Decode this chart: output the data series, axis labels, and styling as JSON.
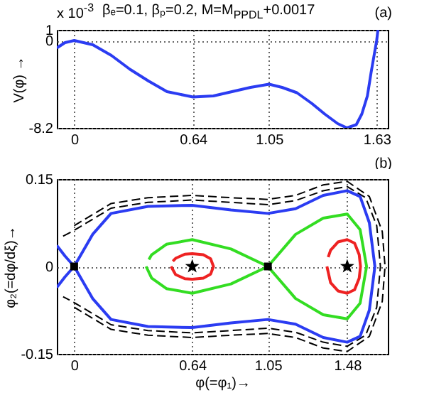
{
  "chart_data": [
    {
      "type": "line",
      "title": "βₑ=0.1, βₚ=0.2, M=M$_{PPDL}$+0.0017",
      "ylabel": "V(φ) →",
      "annotations": [
        "x 10$^{-3}$",
        "(a)"
      ],
      "xlim": [
        -0.094,
        1.69
      ],
      "xticks": [
        0,
        0.64,
        1.05,
        1.63
      ],
      "ylim": [
        -8.2,
        1
      ],
      "yticks": [
        -8.2,
        0,
        1
      ],
      "grid": true,
      "series": [
        {
          "color": "#2b3cf2",
          "line_style": "solid",
          "x": [
            -0.094,
            -0.05,
            0,
            0.1,
            0.2,
            0.3,
            0.4,
            0.5,
            0.64,
            0.75,
            0.85,
            0.95,
            1.05,
            1.12,
            1.2,
            1.28,
            1.35,
            1.42,
            1.47,
            1.52,
            1.55,
            1.58,
            1.6,
            1.615,
            1.63,
            1.637
          ],
          "values": [
            -0.7,
            -0.2,
            0,
            -0.4,
            -1.4,
            -2.7,
            -3.8,
            -4.8,
            -5.3,
            -5.2,
            -4.8,
            -4.4,
            -4.1,
            -4.4,
            -4.9,
            -5.9,
            -6.9,
            -7.8,
            -8.2,
            -7.9,
            -6.9,
            -5.2,
            -3,
            -1.5,
            0,
            1
          ]
        }
      ]
    },
    {
      "type": "line",
      "xlabel": "φ(=φ₁)→",
      "ylabel": "φ₂(=dφ/dξ)→",
      "annotations": [
        "(b)"
      ],
      "xlim": [
        -0.094,
        1.7
      ],
      "xticks": [
        0,
        0.64,
        1.05,
        1.48
      ],
      "ylim": [
        -0.15,
        0.15
      ],
      "yticks": [
        -0.15,
        0,
        0.15
      ],
      "grid": true,
      "series": [
        {
          "color": "#000000",
          "line_style": "dashed",
          "x": [
            0,
            0.2,
            0.4,
            0.64,
            0.85,
            1.05,
            1.2,
            1.35,
            1.48,
            1.6,
            1.67,
            1.685,
            1.67,
            1.6,
            1.48,
            1.35,
            1.2,
            1.05,
            0.85,
            0.64,
            0.4,
            0.2,
            0
          ],
          "values": [
            0.07,
            0.108,
            0.118,
            0.122,
            0.118,
            0.115,
            0.122,
            0.14,
            0.146,
            0.12,
            0.06,
            0,
            -0.06,
            -0.12,
            -0.146,
            -0.14,
            -0.122,
            -0.115,
            -0.118,
            -0.122,
            -0.118,
            -0.108,
            -0.07
          ]
        },
        {
          "color": "#000000",
          "line_style": "dashed",
          "x": [
            -0.06,
            0,
            0.2,
            0.4,
            0.64,
            0.85,
            1.05,
            1.2,
            1.35,
            1.48,
            1.58,
            1.64,
            1.66,
            1.64,
            1.58,
            1.48,
            1.35,
            1.2,
            1.05,
            0.85,
            0.64,
            0.4,
            0.2,
            0,
            -0.06
          ],
          "values": [
            0.052,
            0.062,
            0.1,
            0.11,
            0.114,
            0.11,
            0.106,
            0.113,
            0.13,
            0.137,
            0.118,
            0.07,
            0,
            -0.07,
            -0.118,
            -0.137,
            -0.13,
            -0.113,
            -0.106,
            -0.11,
            -0.114,
            -0.11,
            -0.1,
            -0.062,
            -0.052
          ]
        },
        {
          "color": "#2b3cf2",
          "line_style": "solid",
          "x": [
            -0.094,
            -0.05,
            0,
            0.1,
            0.2,
            0.4,
            0.64,
            0.85,
            1.05,
            1.2,
            1.35,
            1.48,
            1.55,
            1.6,
            1.63,
            1.6,
            1.55,
            1.48,
            1.35,
            1.2,
            1.05,
            0.85,
            0.64,
            0.4,
            0.2,
            0.1,
            0,
            -0.05,
            -0.094
          ],
          "values": [
            0.036,
            0.018,
            0,
            -0.055,
            -0.091,
            -0.103,
            -0.105,
            -0.097,
            -0.091,
            -0.099,
            -0.122,
            -0.13,
            -0.12,
            -0.075,
            0,
            0.075,
            0.12,
            0.13,
            0.122,
            0.099,
            0.091,
            0.097,
            0.105,
            0.103,
            0.091,
            0.055,
            0,
            -0.018,
            -0.036
          ]
        },
        {
          "color": "#33dd22",
          "line_style": "solid",
          "x": [
            0.405,
            0.42,
            0.5,
            0.64,
            0.85,
            1.05,
            1.2,
            1.35,
            1.48,
            1.55,
            1.585,
            1.55,
            1.48,
            1.35,
            1.2,
            1.05,
            0.85,
            0.64,
            0.5,
            0.42,
            0.39
          ],
          "values": [
            0.012,
            0.02,
            0.038,
            0.046,
            0.03,
            0,
            -0.055,
            -0.083,
            -0.09,
            -0.063,
            0,
            0.063,
            0.09,
            0.083,
            0.055,
            0,
            -0.03,
            -0.046,
            -0.038,
            -0.02,
            0
          ]
        },
        {
          "color": "#ee2222",
          "line_style": "solid",
          "x": [
            0.535,
            0.55,
            0.6,
            0.64,
            0.7,
            0.74,
            0.755,
            0.74,
            0.7,
            0.64,
            0.6,
            0.55,
            0.525
          ],
          "values": [
            0.009,
            0.014,
            0.021,
            0.022,
            0.02,
            0.013,
            0,
            -0.013,
            -0.02,
            -0.022,
            -0.021,
            -0.014,
            0
          ]
        },
        {
          "color": "#ee2222",
          "line_style": "solid",
          "x": [
            1.377,
            1.39,
            1.43,
            1.48,
            1.52,
            1.545,
            1.552,
            1.545,
            1.52,
            1.48,
            1.43,
            1.39,
            1.37
          ],
          "values": [
            0.016,
            0.028,
            0.042,
            0.046,
            0.04,
            0.02,
            0,
            -0.02,
            -0.04,
            -0.046,
            -0.042,
            -0.028,
            0
          ]
        },
        {
          "type": "scatter",
          "marker": "square",
          "color": "#000000",
          "x": [
            0,
            1.05
          ],
          "values": [
            0,
            0
          ]
        },
        {
          "type": "scatter",
          "marker": "star",
          "color": "#000000",
          "x": [
            0.64,
            1.48
          ],
          "values": [
            0,
            0
          ]
        }
      ]
    }
  ]
}
